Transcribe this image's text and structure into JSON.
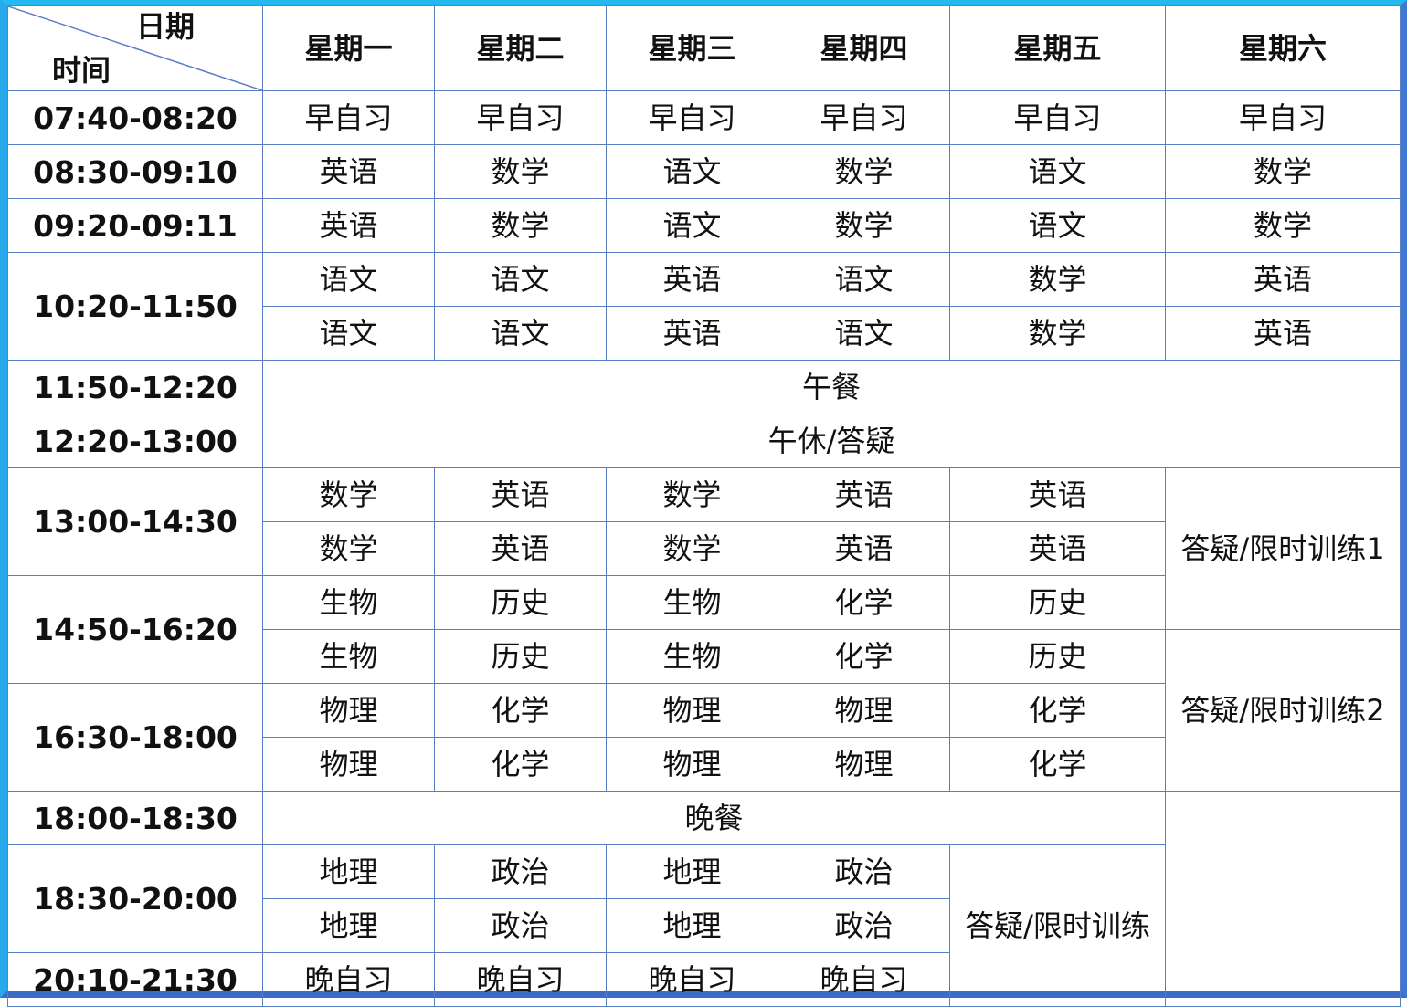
{
  "corner": {
    "top_label": "日期",
    "bottom_label": "时间"
  },
  "days": [
    "星期一",
    "星期二",
    "星期三",
    "星期四",
    "星期五",
    "星期六"
  ],
  "colors": {
    "grid": "#5a7fc4",
    "frame_top": "#22b8f0",
    "frame_bottom": "#3a6cc8"
  },
  "rows": [
    {
      "time": "07:40-08:20",
      "cells": [
        {
          "text": "早自习"
        },
        {
          "text": "早自习"
        },
        {
          "text": "早自习"
        },
        {
          "text": "早自习"
        },
        {
          "text": "早自习"
        },
        {
          "text": "早自习"
        }
      ]
    },
    {
      "time": "08:30-09:10",
      "cells": [
        {
          "text": "英语"
        },
        {
          "text": "数学"
        },
        {
          "text": "语文"
        },
        {
          "text": "数学"
        },
        {
          "text": "语文"
        },
        {
          "text": "数学"
        }
      ]
    },
    {
      "time": "09:20-09:11",
      "cells": [
        {
          "text": "英语"
        },
        {
          "text": "数学"
        },
        {
          "text": "语文"
        },
        {
          "text": "数学"
        },
        {
          "text": "语文"
        },
        {
          "text": "数学"
        }
      ]
    },
    {
      "time": "10:20-11:50",
      "time_rowspan": 2,
      "cells": [
        {
          "text": "语文"
        },
        {
          "text": "语文"
        },
        {
          "text": "英语"
        },
        {
          "text": "语文"
        },
        {
          "text": "数学"
        },
        {
          "text": "英语"
        }
      ]
    },
    {
      "cells": [
        {
          "text": "语文"
        },
        {
          "text": "语文"
        },
        {
          "text": "英语"
        },
        {
          "text": "语文"
        },
        {
          "text": "数学"
        },
        {
          "text": "英语"
        }
      ]
    },
    {
      "time": "11:50-12:20",
      "cells": [
        {
          "text": "午餐",
          "colspan": 6
        }
      ]
    },
    {
      "time": "12:20-13:00",
      "cells": [
        {
          "text": "午休/答疑",
          "colspan": 6
        }
      ]
    },
    {
      "time": "13:00-14:30",
      "time_rowspan": 2,
      "cells": [
        {
          "text": "数学"
        },
        {
          "text": "英语"
        },
        {
          "text": "数学"
        },
        {
          "text": "英语"
        },
        {
          "text": "英语"
        },
        {
          "text": "答疑/限时训练1",
          "rowspan": 3
        }
      ]
    },
    {
      "cells": [
        {
          "text": "数学"
        },
        {
          "text": "英语"
        },
        {
          "text": "数学"
        },
        {
          "text": "英语"
        },
        {
          "text": "英语"
        }
      ]
    },
    {
      "time": "14:50-16:20",
      "time_rowspan": 2,
      "cells": [
        {
          "text": "生物"
        },
        {
          "text": "历史"
        },
        {
          "text": "生物"
        },
        {
          "text": "化学"
        },
        {
          "text": "历史"
        }
      ]
    },
    {
      "cells": [
        {
          "text": "生物"
        },
        {
          "text": "历史"
        },
        {
          "text": "生物"
        },
        {
          "text": "化学"
        },
        {
          "text": "历史"
        },
        {
          "text": "答疑/限时训练2",
          "rowspan": 3
        }
      ]
    },
    {
      "time": "16:30-18:00",
      "time_rowspan": 2,
      "cells": [
        {
          "text": "物理"
        },
        {
          "text": "化学"
        },
        {
          "text": "物理"
        },
        {
          "text": "物理"
        },
        {
          "text": "化学"
        }
      ]
    },
    {
      "cells": [
        {
          "text": "物理"
        },
        {
          "text": "化学"
        },
        {
          "text": "物理"
        },
        {
          "text": "物理"
        },
        {
          "text": "化学"
        }
      ]
    },
    {
      "time": "18:00-18:30",
      "cells": [
        {
          "text": "晚餐",
          "colspan": 5
        },
        {
          "text": "",
          "rowspan": 4
        }
      ]
    },
    {
      "time": "18:30-20:00",
      "time_rowspan": 2,
      "cells": [
        {
          "text": "地理"
        },
        {
          "text": "政治"
        },
        {
          "text": "地理"
        },
        {
          "text": "政治"
        },
        {
          "text": "答疑/限时训练",
          "rowspan": 3
        }
      ]
    },
    {
      "cells": [
        {
          "text": "地理"
        },
        {
          "text": "政治"
        },
        {
          "text": "地理"
        },
        {
          "text": "政治"
        }
      ]
    },
    {
      "time": "20:10-21:30",
      "cells": [
        {
          "text": "晚自习"
        },
        {
          "text": "晚自习"
        },
        {
          "text": "晚自习"
        },
        {
          "text": "晚自习"
        }
      ]
    }
  ]
}
